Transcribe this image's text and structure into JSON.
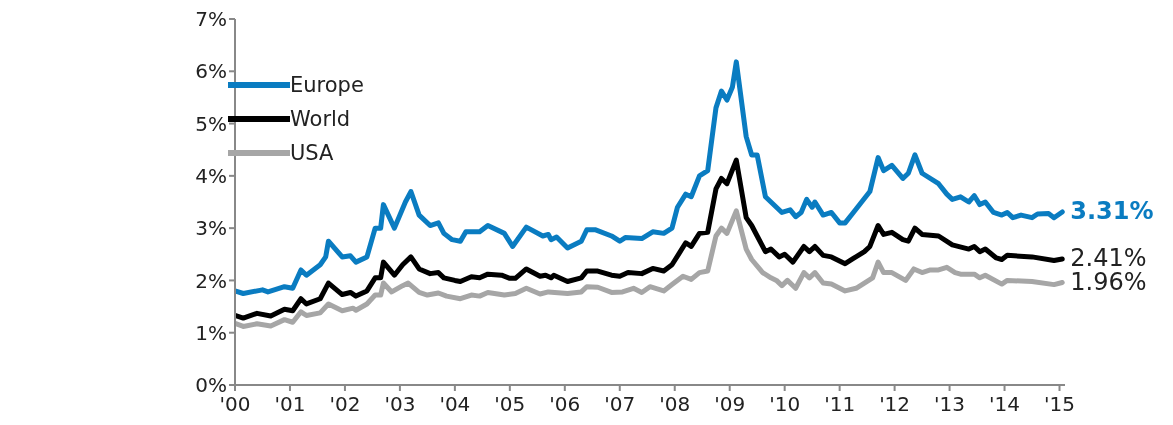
{
  "chart_data": {
    "type": "line",
    "legend": "top left",
    "grid": false,
    "marker": "none",
    "line_style": "solid",
    "xlim": [
      2000,
      2015.1
    ],
    "ylim": [
      0,
      7
    ],
    "xticks": [
      {
        "value": 2000,
        "label": "'00"
      },
      {
        "value": 2001,
        "label": "'01"
      },
      {
        "value": 2002,
        "label": "'02"
      },
      {
        "value": 2003,
        "label": "'03"
      },
      {
        "value": 2004,
        "label": "'04"
      },
      {
        "value": 2005,
        "label": "'05"
      },
      {
        "value": 2006,
        "label": "'06"
      },
      {
        "value": 2007,
        "label": "'07"
      },
      {
        "value": 2008,
        "label": "'08"
      },
      {
        "value": 2009,
        "label": "'09"
      },
      {
        "value": 2010,
        "label": "'10"
      },
      {
        "value": 2011,
        "label": "'11"
      },
      {
        "value": 2012,
        "label": "'12"
      },
      {
        "value": 2013,
        "label": "'13"
      },
      {
        "value": 2014,
        "label": "'14"
      },
      {
        "value": 2015,
        "label": "'15"
      }
    ],
    "yticks": [
      {
        "value": 0,
        "label": "0%"
      },
      {
        "value": 1,
        "label": "1%"
      },
      {
        "value": 2,
        "label": "2%"
      },
      {
        "value": 3,
        "label": "3%"
      },
      {
        "value": 4,
        "label": "4%"
      },
      {
        "value": 5,
        "label": "5%"
      },
      {
        "value": 6,
        "label": "6%"
      },
      {
        "value": 7,
        "label": "7%"
      }
    ],
    "series": [
      {
        "name": "Europe",
        "color": "#0a7cc1",
        "value_labels": [
          null,
          null,
          null,
          null,
          null,
          null,
          null,
          null,
          null,
          null,
          null,
          null,
          null,
          null,
          null,
          null,
          null,
          null,
          null,
          null,
          null,
          null,
          null,
          null,
          null,
          null,
          null,
          null,
          null,
          null,
          null,
          null,
          null,
          null,
          null,
          null,
          null,
          null,
          null,
          null,
          null,
          null,
          null,
          null,
          null,
          null,
          null,
          null,
          null,
          null,
          null,
          null,
          null,
          null,
          null,
          null,
          null,
          null,
          null,
          null,
          null,
          null,
          null,
          null,
          null,
          null,
          null,
          null,
          null,
          null,
          null,
          null,
          null,
          null,
          null,
          null,
          null,
          null,
          null,
          null,
          null,
          null,
          null,
          null,
          null,
          null,
          null,
          null,
          null,
          null,
          null,
          null,
          null,
          null,
          null,
          null,
          null,
          null,
          null,
          null,
          null,
          "3.31%"
        ],
        "x": [
          2000,
          2000.15,
          2000.5,
          2000.6,
          2000.9,
          2001.05,
          2001.2,
          2001.3,
          2001.55,
          2001.65,
          2001.7,
          2001.95,
          2002.1,
          2002.2,
          2002.4,
          2002.55,
          2002.65,
          2002.7,
          2002.9,
          2003.1,
          2003.2,
          2003.35,
          2003.55,
          2003.7,
          2003.8,
          2003.95,
          2004.1,
          2004.2,
          2004.45,
          2004.6,
          2004.9,
          2005.05,
          2005.3,
          2005.6,
          2005.7,
          2005.75,
          2005.85,
          2006.05,
          2006.3,
          2006.4,
          2006.55,
          2006.85,
          2007.0,
          2007.1,
          2007.4,
          2007.6,
          2007.8,
          2007.95,
          2008.05,
          2008.2,
          2008.3,
          2008.45,
          2008.6,
          2008.75,
          2008.85,
          2008.95,
          2009.05,
          2009.12,
          2009.3,
          2009.4,
          2009.5,
          2009.65,
          2009.75,
          2009.95,
          2010.1,
          2010.2,
          2010.3,
          2010.4,
          2010.5,
          2010.55,
          2010.7,
          2010.85,
          2011.0,
          2011.1,
          2011.25,
          2011.4,
          2011.55,
          2011.7,
          2011.8,
          2011.95,
          2012.15,
          2012.25,
          2012.37,
          2012.5,
          2012.8,
          2012.95,
          2013.05,
          2013.2,
          2013.35,
          2013.45,
          2013.55,
          2013.65,
          2013.8,
          2013.95,
          2014.05,
          2014.15,
          2014.3,
          2014.5,
          2014.6,
          2014.8,
          2014.9,
          2015.05
        ],
        "values": [
          1.8,
          1.75,
          1.82,
          1.78,
          1.88,
          1.85,
          2.2,
          2.1,
          2.3,
          2.45,
          2.75,
          2.45,
          2.47,
          2.35,
          2.45,
          3.0,
          3.0,
          3.45,
          3.0,
          3.5,
          3.7,
          3.25,
          3.05,
          3.1,
          2.9,
          2.78,
          2.75,
          2.93,
          2.93,
          3.05,
          2.9,
          2.65,
          3.02,
          2.85,
          2.88,
          2.78,
          2.83,
          2.62,
          2.75,
          2.97,
          2.97,
          2.85,
          2.75,
          2.82,
          2.8,
          2.93,
          2.9,
          3.0,
          3.4,
          3.65,
          3.6,
          4.0,
          4.1,
          5.3,
          5.62,
          5.45,
          5.7,
          6.18,
          4.75,
          4.4,
          4.4,
          3.6,
          3.5,
          3.3,
          3.35,
          3.22,
          3.3,
          3.55,
          3.4,
          3.5,
          3.25,
          3.3,
          3.1,
          3.1,
          3.3,
          3.5,
          3.7,
          4.35,
          4.1,
          4.2,
          3.95,
          4.05,
          4.4,
          4.05,
          3.85,
          3.65,
          3.55,
          3.6,
          3.5,
          3.62,
          3.45,
          3.5,
          3.3,
          3.25,
          3.3,
          3.2,
          3.25,
          3.2,
          3.27,
          3.28,
          3.2,
          3.31
        ]
      },
      {
        "name": "World",
        "color": "#000000",
        "value_labels": [
          null,
          null,
          null,
          null,
          null,
          null,
          null,
          null,
          null,
          null,
          null,
          null,
          null,
          null,
          null,
          null,
          null,
          null,
          null,
          null,
          null,
          null,
          null,
          null,
          null,
          null,
          null,
          null,
          null,
          null,
          null,
          null,
          null,
          null,
          null,
          null,
          null,
          null,
          null,
          null,
          null,
          null,
          null,
          null,
          null,
          null,
          null,
          null,
          null,
          null,
          null,
          null,
          null,
          null,
          null,
          null,
          null,
          null,
          null,
          null,
          null,
          null,
          null,
          null,
          null,
          null,
          null,
          null,
          null,
          null,
          null,
          null,
          null,
          null,
          null,
          null,
          null,
          null,
          null,
          null,
          null,
          null,
          null,
          null,
          null,
          null,
          null,
          null,
          null,
          null,
          null,
          null,
          "2.41%"
        ],
        "x": [
          2000,
          2000.15,
          2000.4,
          2000.65,
          2000.9,
          2001.05,
          2001.2,
          2001.3,
          2001.55,
          2001.7,
          2001.95,
          2002.1,
          2002.2,
          2002.4,
          2002.55,
          2002.65,
          2002.7,
          2002.9,
          2003.05,
          2003.2,
          2003.35,
          2003.55,
          2003.7,
          2003.8,
          2004.0,
          2004.1,
          2004.3,
          2004.45,
          2004.6,
          2004.85,
          2005.0,
          2005.1,
          2005.3,
          2005.55,
          2005.65,
          2005.75,
          2005.8,
          2006.05,
          2006.3,
          2006.4,
          2006.6,
          2006.85,
          2007.0,
          2007.15,
          2007.4,
          2007.6,
          2007.8,
          2007.95,
          2008.1,
          2008.2,
          2008.3,
          2008.45,
          2008.6,
          2008.75,
          2008.85,
          2008.95,
          2009.12,
          2009.3,
          2009.4,
          2009.5,
          2009.65,
          2009.75,
          2009.9,
          2010.0,
          2010.15,
          2010.35,
          2010.45,
          2010.55,
          2010.7,
          2010.85,
          2011.1,
          2011.25,
          2011.45,
          2011.55,
          2011.7,
          2011.8,
          2011.95,
          2012.15,
          2012.25,
          2012.37,
          2012.5,
          2012.8,
          2013.05,
          2013.35,
          2013.45,
          2013.55,
          2013.65,
          2013.85,
          2013.95,
          2014.05,
          2014.5,
          2014.9,
          2015.05
        ],
        "values": [
          1.33,
          1.28,
          1.37,
          1.32,
          1.45,
          1.42,
          1.65,
          1.55,
          1.65,
          1.95,
          1.73,
          1.77,
          1.7,
          1.8,
          2.05,
          2.05,
          2.35,
          2.1,
          2.3,
          2.45,
          2.22,
          2.13,
          2.15,
          2.05,
          2.0,
          1.98,
          2.07,
          2.05,
          2.12,
          2.1,
          2.04,
          2.04,
          2.22,
          2.08,
          2.1,
          2.05,
          2.1,
          1.98,
          2.05,
          2.18,
          2.18,
          2.1,
          2.08,
          2.15,
          2.13,
          2.23,
          2.18,
          2.3,
          2.55,
          2.72,
          2.65,
          2.9,
          2.92,
          3.75,
          3.95,
          3.85,
          4.3,
          3.2,
          3.05,
          2.85,
          2.55,
          2.6,
          2.45,
          2.5,
          2.35,
          2.65,
          2.55,
          2.65,
          2.48,
          2.45,
          2.32,
          2.42,
          2.55,
          2.65,
          3.05,
          2.88,
          2.92,
          2.78,
          2.75,
          3.0,
          2.88,
          2.85,
          2.68,
          2.6,
          2.65,
          2.55,
          2.6,
          2.43,
          2.4,
          2.48,
          2.45,
          2.38,
          2.41
        ]
      },
      {
        "name": "USA",
        "color": "#a6a6a6",
        "value_labels": [
          null,
          null,
          null,
          null,
          null,
          null,
          null,
          null,
          null,
          null,
          null,
          null,
          null,
          null,
          null,
          null,
          null,
          null,
          null,
          null,
          null,
          null,
          null,
          null,
          null,
          null,
          null,
          null,
          null,
          null,
          null,
          null,
          null,
          null,
          null,
          null,
          null,
          null,
          null,
          null,
          null,
          null,
          null,
          null,
          null,
          null,
          null,
          null,
          null,
          null,
          null,
          null,
          null,
          null,
          null,
          null,
          null,
          null,
          null,
          null,
          null,
          null,
          null,
          null,
          null,
          null,
          null,
          null,
          null,
          null,
          null,
          null,
          null,
          null,
          null,
          null,
          null,
          null,
          null,
          null,
          null,
          null,
          null,
          null,
          null,
          null,
          null,
          "1.96%"
        ],
        "x": [
          2000,
          2000.15,
          2000.4,
          2000.65,
          2000.9,
          2001.05,
          2001.2,
          2001.3,
          2001.55,
          2001.7,
          2001.95,
          2002.15,
          2002.2,
          2002.4,
          2002.55,
          2002.65,
          2002.7,
          2002.85,
          2003.05,
          2003.15,
          2003.35,
          2003.5,
          2003.7,
          2003.85,
          2004.1,
          2004.3,
          2004.45,
          2004.6,
          2004.9,
          2005.1,
          2005.3,
          2005.55,
          2005.7,
          2006.05,
          2006.3,
          2006.4,
          2006.6,
          2006.85,
          2007.05,
          2007.25,
          2007.4,
          2007.55,
          2007.8,
          2007.95,
          2008.15,
          2008.3,
          2008.45,
          2008.6,
          2008.75,
          2008.85,
          2008.95,
          2009.12,
          2009.3,
          2009.4,
          2009.6,
          2009.75,
          2009.85,
          2009.95,
          2010.05,
          2010.2,
          2010.35,
          2010.45,
          2010.55,
          2010.7,
          2010.85,
          2011.1,
          2011.3,
          2011.45,
          2011.6,
          2011.7,
          2011.8,
          2011.95,
          2012.2,
          2012.35,
          2012.5,
          2012.65,
          2012.8,
          2012.95,
          2013.1,
          2013.2,
          2013.45,
          2013.55,
          2013.65,
          2013.95,
          2014.05,
          2014.5,
          2014.9,
          2015.05
        ],
        "values": [
          1.18,
          1.12,
          1.17,
          1.13,
          1.25,
          1.2,
          1.4,
          1.33,
          1.38,
          1.55,
          1.42,
          1.47,
          1.43,
          1.55,
          1.72,
          1.72,
          1.95,
          1.78,
          1.9,
          1.95,
          1.77,
          1.72,
          1.76,
          1.7,
          1.65,
          1.72,
          1.7,
          1.77,
          1.72,
          1.75,
          1.85,
          1.74,
          1.78,
          1.75,
          1.78,
          1.88,
          1.87,
          1.77,
          1.78,
          1.85,
          1.77,
          1.88,
          1.8,
          1.92,
          2.08,
          2.02,
          2.15,
          2.18,
          2.85,
          3.0,
          2.9,
          3.33,
          2.6,
          2.4,
          2.15,
          2.05,
          2.0,
          1.9,
          2.0,
          1.85,
          2.15,
          2.05,
          2.15,
          1.95,
          1.93,
          1.8,
          1.85,
          1.95,
          2.05,
          2.35,
          2.15,
          2.15,
          2.0,
          2.22,
          2.15,
          2.2,
          2.2,
          2.25,
          2.15,
          2.12,
          2.12,
          2.05,
          2.1,
          1.93,
          2.0,
          1.98,
          1.92,
          1.96
        ]
      }
    ]
  }
}
